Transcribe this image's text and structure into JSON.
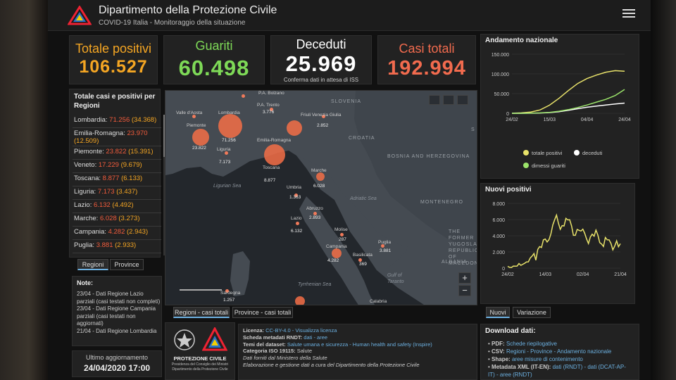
{
  "header": {
    "title": "Dipartimento della Protezione Civile",
    "subtitle": "COVID-19 Italia - Monitoraggio della situazione"
  },
  "stats": {
    "positivi": {
      "label": "Totale positivi",
      "value": "106.527",
      "color": "#f5a623"
    },
    "guariti": {
      "label": "Guariti",
      "value": "60.498",
      "color": "#7ed957"
    },
    "deceduti": {
      "label": "Deceduti",
      "value": "25.969",
      "note": "Conferma dati in attesa di ISS",
      "color": "#ffffff"
    },
    "casi": {
      "label": "Casi totali",
      "value": "192.994",
      "color": "#f26b4e"
    }
  },
  "regions": {
    "title": "Totale casi e positivi per Regioni",
    "items": [
      {
        "name": "Lombardia:",
        "cases": "71.256",
        "positives": "(34.368)"
      },
      {
        "name": "Emilia-Romagna:",
        "cases": "23.970",
        "positives": "(12.509)"
      },
      {
        "name": "Piemonte:",
        "cases": "23.822",
        "positives": "(15.391)"
      },
      {
        "name": "Veneto:",
        "cases": "17.229",
        "positives": "(9.679)"
      },
      {
        "name": "Toscana:",
        "cases": "8.877",
        "positives": "(6.133)"
      },
      {
        "name": "Liguria:",
        "cases": "7.173",
        "positives": "(3.437)"
      },
      {
        "name": "Lazio:",
        "cases": "6.132",
        "positives": "(4.492)"
      },
      {
        "name": "Marche:",
        "cases": "6.028",
        "positives": "(3.273)"
      },
      {
        "name": "Campania:",
        "cases": "4.282",
        "positives": "(2.943)"
      },
      {
        "name": "Puglia:",
        "cases": "3.881",
        "positives": "(2.933)"
      }
    ],
    "tabs": [
      "Regioni",
      "Province"
    ]
  },
  "notes": {
    "title": "Note:",
    "lines": [
      "23/04 - Dati Regione Lazio parziali (casi testati non completi)",
      "23/04 - Dati Regione Campania parziali (casi testati non aggiornati)",
      "21/04 - Dati Regione Lombardia"
    ]
  },
  "update": {
    "label": "Ultimo aggiornamento",
    "value": "24/04/2020 17:00"
  },
  "map": {
    "tabs": [
      "Regioni - casi totali",
      "Province - casi totali"
    ],
    "labels": {
      "valle": "Valle d'Aosta",
      "lombardia": "Lombardia",
      "piemonte": "Piemonte",
      "liguria": "Liguria",
      "trento": "P.A. Trento",
      "bolzano": "P.A. Bolzano",
      "friuli": "Friuli Venezia Giulia",
      "emilia": "Emilia-Romagna",
      "toscana": "Toscana",
      "marche": "Marche",
      "umbria": "Umbria",
      "abruzzo": "Abruzzo",
      "lazio": "Lazio",
      "molise": "Molise",
      "campania": "Campania",
      "puglia": "Puglia",
      "basilicata": "Basilicata",
      "sardegna": "Sardegna",
      "calabria": "Calabria"
    },
    "values": {
      "lombardia": "71.256",
      "piemonte": "23.822",
      "liguria": "7.173",
      "trento": "3.776",
      "friuli": "2.852",
      "toscana": "8.877",
      "marche": "6.028",
      "umbria": "1.363",
      "abruzzo": "2.893",
      "lazio": "6.132",
      "molise": "287",
      "campania": "4.282",
      "puglia": "3.881",
      "basilicata": "369",
      "sardegna": "1.257"
    },
    "geo": {
      "slovenia": "SLOVENIA",
      "croatia": "CROATIA",
      "bosnia": "BOSNIA AND HERZEGOVINA",
      "montenegro": "MONTENEGRO",
      "albania": "ALBANIA",
      "serbia": "S",
      "fyrom": "THE FORMER YUGOSLAV REPUBLIC OF MACEDONIA",
      "ligurian": "Ligurian Sea",
      "adriatic": "Adriatic Sea",
      "tyrrhenian": "Tyrrhenian Sea",
      "taranto": "Gulf of Taranto"
    }
  },
  "chart_data": [
    {
      "type": "line",
      "title": "Andamento nazionale",
      "x_ticks": [
        "24/02",
        "15/03",
        "04/04",
        "24/04"
      ],
      "y_ticks": [
        "150.000",
        "100.000",
        "50.000",
        "0"
      ],
      "ylim": [
        0,
        150000
      ],
      "x": [
        "24/02",
        "29/02",
        "05/03",
        "10/03",
        "15/03",
        "20/03",
        "25/03",
        "30/03",
        "04/04",
        "09/04",
        "14/04",
        "19/04",
        "24/04"
      ],
      "series": [
        {
          "name": "totale positivi",
          "color": "#e8e26a",
          "values": [
            221,
            1049,
            3296,
            8514,
            20603,
            37860,
            57521,
            75528,
            88274,
            96877,
            104291,
            108257,
            106527
          ]
        },
        {
          "name": "deceduti",
          "color": "#ffffff",
          "values": [
            7,
            29,
            148,
            631,
            1809,
            4032,
            7503,
            11591,
            15362,
            18279,
            21067,
            23660,
            25969
          ]
        },
        {
          "name": "dimessi guariti",
          "color": "#9be36a",
          "values": [
            1,
            50,
            414,
            1004,
            2335,
            5129,
            9362,
            14620,
            20996,
            28470,
            35435,
            45154,
            60498
          ]
        }
      ]
    },
    {
      "type": "line",
      "title": "Nuovi positivi",
      "x_ticks": [
        "24/02",
        "14/03",
        "02/04",
        "21/04"
      ],
      "y_ticks": [
        "8.000",
        "6.000",
        "4.000",
        "2.000",
        "0"
      ],
      "ylim": [
        0,
        8000
      ],
      "series": [
        {
          "name": "Nuovi positivi",
          "color": "#e8e26a",
          "values": [
            221,
            93,
            78,
            250,
            238,
            240,
            566,
            342,
            466,
            587,
            769,
            778,
            1247,
            1492,
            1797,
            977,
            2313,
            2651,
            2547,
            3497,
            3590,
            3233,
            3526,
            4207,
            5322,
            5986,
            6557,
            5560,
            4789,
            5249,
            5210,
            6153,
            5959,
            5974,
            5217,
            4050,
            4053,
            4782,
            4668,
            4585,
            4805,
            4316,
            3599,
            3039,
            3836,
            4204,
            3951,
            4694,
            4092,
            3153,
            2972,
            2667,
            3786,
            3493,
            3491,
            3047,
            2256,
            2729,
            3370,
            2646,
            3021
          ]
        }
      ],
      "tabs": [
        "Nuovi",
        "Variazione"
      ]
    }
  ],
  "downloads": {
    "title": "Download dati:",
    "pdf_label": "PDF:",
    "pdf_link": "Schede riepilogative",
    "csv_label": "CSV:",
    "csv_links": "Regioni - Province - Andamento nazionale",
    "shape_label": "Shape:",
    "shape_link": "aree misure di contenimento",
    "xml_label": "Metadata XML (IT-EN):",
    "xml_links": "dati (RNDT) - dati (DCAT-AP-IT) - aree (RNDT)"
  },
  "license": {
    "lic_label": "Licenza:",
    "lic_value": "CC-BY-4.0 - Visualizza licenza",
    "rndt_label": "Scheda metadati RNDT:",
    "rndt_value": "dati - aree",
    "temi_label": "Temi del dataset:",
    "temi_value": "Salute umana e sicurezza - Human health and safety (Inspire)",
    "cat_label": "Categoria ISO 19115:",
    "cat_value": "Salute",
    "line5": "Dati forniti dal Ministero della Salute",
    "line6": "Elaborazione e gestione dati a cura del Dipartimento della Protezione Civile"
  },
  "footer_logo": {
    "line1": "PROTEZIONE CIVILE",
    "line2": "Presidenza del Consiglio dei Ministri",
    "line3": "Dipartimento della Protezione Civile"
  }
}
